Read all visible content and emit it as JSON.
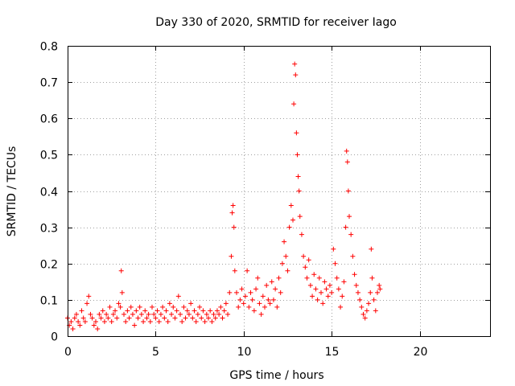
{
  "chart_data": {
    "type": "scatter",
    "title": "Day 330 of 2020, SRMTID for receiver Iago",
    "xlabel": "GPS time / hours",
    "ylabel": "SRMTID / TECUs",
    "xlim": [
      0,
      24
    ],
    "ylim": [
      0,
      0.8
    ],
    "xticks": [
      0,
      5,
      10,
      15,
      20
    ],
    "xtick_labels": [
      "0",
      "5",
      "10",
      "15",
      "20"
    ],
    "yticks": [
      0,
      0.1,
      0.2,
      0.3,
      0.4,
      0.5,
      0.6,
      0.7,
      0.8
    ],
    "ytick_labels": [
      "0",
      "0.1",
      "0.2",
      "0.3",
      "0.4",
      "0.5",
      "0.6",
      "0.7",
      "0.8"
    ],
    "grid": true,
    "marker": "plus",
    "color": "#ff0000",
    "series": [
      {
        "name": "SRMTID",
        "points": [
          [
            0.0,
            0.05
          ],
          [
            0.1,
            0.03
          ],
          [
            0.2,
            0.04
          ],
          [
            0.3,
            0.02
          ],
          [
            0.4,
            0.05
          ],
          [
            0.5,
            0.06
          ],
          [
            0.6,
            0.04
          ],
          [
            0.7,
            0.03
          ],
          [
            0.8,
            0.07
          ],
          [
            0.9,
            0.05
          ],
          [
            1.0,
            0.04
          ],
          [
            1.1,
            0.09
          ],
          [
            1.2,
            0.11
          ],
          [
            1.3,
            0.06
          ],
          [
            1.4,
            0.05
          ],
          [
            1.5,
            0.03
          ],
          [
            1.6,
            0.04
          ],
          [
            1.7,
            0.02
          ],
          [
            1.8,
            0.06
          ],
          [
            1.9,
            0.05
          ],
          [
            2.0,
            0.07
          ],
          [
            2.1,
            0.04
          ],
          [
            2.2,
            0.06
          ],
          [
            2.3,
            0.05
          ],
          [
            2.4,
            0.08
          ],
          [
            2.5,
            0.04
          ],
          [
            2.6,
            0.06
          ],
          [
            2.7,
            0.07
          ],
          [
            2.8,
            0.05
          ],
          [
            2.9,
            0.09
          ],
          [
            3.0,
            0.08
          ],
          [
            3.05,
            0.18
          ],
          [
            3.1,
            0.12
          ],
          [
            3.2,
            0.06
          ],
          [
            3.3,
            0.04
          ],
          [
            3.4,
            0.07
          ],
          [
            3.5,
            0.05
          ],
          [
            3.6,
            0.08
          ],
          [
            3.7,
            0.06
          ],
          [
            3.8,
            0.03
          ],
          [
            3.9,
            0.07
          ],
          [
            4.0,
            0.05
          ],
          [
            4.1,
            0.08
          ],
          [
            4.2,
            0.06
          ],
          [
            4.3,
            0.04
          ],
          [
            4.4,
            0.07
          ],
          [
            4.5,
            0.05
          ],
          [
            4.6,
            0.06
          ],
          [
            4.7,
            0.04
          ],
          [
            4.8,
            0.08
          ],
          [
            4.9,
            0.06
          ],
          [
            5.0,
            0.05
          ],
          [
            5.1,
            0.07
          ],
          [
            5.2,
            0.04
          ],
          [
            5.3,
            0.06
          ],
          [
            5.4,
            0.08
          ],
          [
            5.5,
            0.05
          ],
          [
            5.6,
            0.07
          ],
          [
            5.7,
            0.04
          ],
          [
            5.8,
            0.09
          ],
          [
            5.9,
            0.06
          ],
          [
            6.0,
            0.08
          ],
          [
            6.1,
            0.05
          ],
          [
            6.2,
            0.07
          ],
          [
            6.3,
            0.11
          ],
          [
            6.4,
            0.06
          ],
          [
            6.5,
            0.04
          ],
          [
            6.6,
            0.08
          ],
          [
            6.7,
            0.05
          ],
          [
            6.8,
            0.07
          ],
          [
            6.9,
            0.06
          ],
          [
            7.0,
            0.09
          ],
          [
            7.1,
            0.05
          ],
          [
            7.2,
            0.07
          ],
          [
            7.3,
            0.04
          ],
          [
            7.4,
            0.06
          ],
          [
            7.5,
            0.08
          ],
          [
            7.6,
            0.05
          ],
          [
            7.7,
            0.07
          ],
          [
            7.8,
            0.04
          ],
          [
            7.9,
            0.06
          ],
          [
            8.0,
            0.05
          ],
          [
            8.1,
            0.07
          ],
          [
            8.2,
            0.04
          ],
          [
            8.3,
            0.06
          ],
          [
            8.4,
            0.05
          ],
          [
            8.5,
            0.07
          ],
          [
            8.6,
            0.06
          ],
          [
            8.7,
            0.08
          ],
          [
            8.8,
            0.05
          ],
          [
            8.9,
            0.07
          ],
          [
            9.0,
            0.09
          ],
          [
            9.1,
            0.06
          ],
          [
            9.2,
            0.12
          ],
          [
            9.3,
            0.22
          ],
          [
            9.35,
            0.34
          ],
          [
            9.4,
            0.36
          ],
          [
            9.45,
            0.3
          ],
          [
            9.5,
            0.18
          ],
          [
            9.6,
            0.12
          ],
          [
            9.7,
            0.08
          ],
          [
            9.8,
            0.1
          ],
          [
            9.9,
            0.13
          ],
          [
            10.0,
            0.09
          ],
          [
            10.1,
            0.11
          ],
          [
            10.2,
            0.18
          ],
          [
            10.3,
            0.08
          ],
          [
            10.4,
            0.12
          ],
          [
            10.5,
            0.1
          ],
          [
            10.6,
            0.07
          ],
          [
            10.7,
            0.13
          ],
          [
            10.8,
            0.16
          ],
          [
            10.9,
            0.09
          ],
          [
            11.0,
            0.06
          ],
          [
            11.1,
            0.11
          ],
          [
            11.2,
            0.08
          ],
          [
            11.3,
            0.14
          ],
          [
            11.4,
            0.1
          ],
          [
            11.5,
            0.09
          ],
          [
            11.6,
            0.15
          ],
          [
            11.7,
            0.1
          ],
          [
            11.8,
            0.13
          ],
          [
            11.9,
            0.08
          ],
          [
            12.0,
            0.16
          ],
          [
            12.1,
            0.12
          ],
          [
            12.2,
            0.2
          ],
          [
            12.3,
            0.26
          ],
          [
            12.4,
            0.22
          ],
          [
            12.5,
            0.18
          ],
          [
            12.6,
            0.3
          ],
          [
            12.7,
            0.36
          ],
          [
            12.8,
            0.32
          ],
          [
            12.85,
            0.64
          ],
          [
            12.9,
            0.75
          ],
          [
            12.95,
            0.72
          ],
          [
            13.0,
            0.56
          ],
          [
            13.05,
            0.5
          ],
          [
            13.1,
            0.44
          ],
          [
            13.15,
            0.4
          ],
          [
            13.2,
            0.33
          ],
          [
            13.3,
            0.28
          ],
          [
            13.4,
            0.22
          ],
          [
            13.5,
            0.19
          ],
          [
            13.6,
            0.16
          ],
          [
            13.7,
            0.21
          ],
          [
            13.8,
            0.14
          ],
          [
            13.9,
            0.11
          ],
          [
            14.0,
            0.17
          ],
          [
            14.1,
            0.13
          ],
          [
            14.2,
            0.1
          ],
          [
            14.3,
            0.16
          ],
          [
            14.4,
            0.12
          ],
          [
            14.5,
            0.09
          ],
          [
            14.6,
            0.15
          ],
          [
            14.7,
            0.13
          ],
          [
            14.8,
            0.11
          ],
          [
            14.9,
            0.14
          ],
          [
            15.0,
            0.12
          ],
          [
            15.1,
            0.24
          ],
          [
            15.2,
            0.2
          ],
          [
            15.3,
            0.16
          ],
          [
            15.4,
            0.13
          ],
          [
            15.5,
            0.08
          ],
          [
            15.6,
            0.11
          ],
          [
            15.7,
            0.15
          ],
          [
            15.8,
            0.3
          ],
          [
            15.85,
            0.51
          ],
          [
            15.9,
            0.48
          ],
          [
            15.95,
            0.4
          ],
          [
            16.0,
            0.33
          ],
          [
            16.1,
            0.28
          ],
          [
            16.2,
            0.22
          ],
          [
            16.3,
            0.17
          ],
          [
            16.4,
            0.14
          ],
          [
            16.5,
            0.12
          ],
          [
            16.6,
            0.1
          ],
          [
            16.7,
            0.08
          ],
          [
            16.8,
            0.06
          ],
          [
            16.9,
            0.05
          ],
          [
            17.0,
            0.07
          ],
          [
            17.1,
            0.09
          ],
          [
            17.2,
            0.12
          ],
          [
            17.25,
            0.24
          ],
          [
            17.3,
            0.16
          ],
          [
            17.4,
            0.1
          ],
          [
            17.5,
            0.07
          ],
          [
            17.6,
            0.12
          ],
          [
            17.7,
            0.14
          ],
          [
            17.75,
            0.13
          ]
        ]
      }
    ]
  }
}
